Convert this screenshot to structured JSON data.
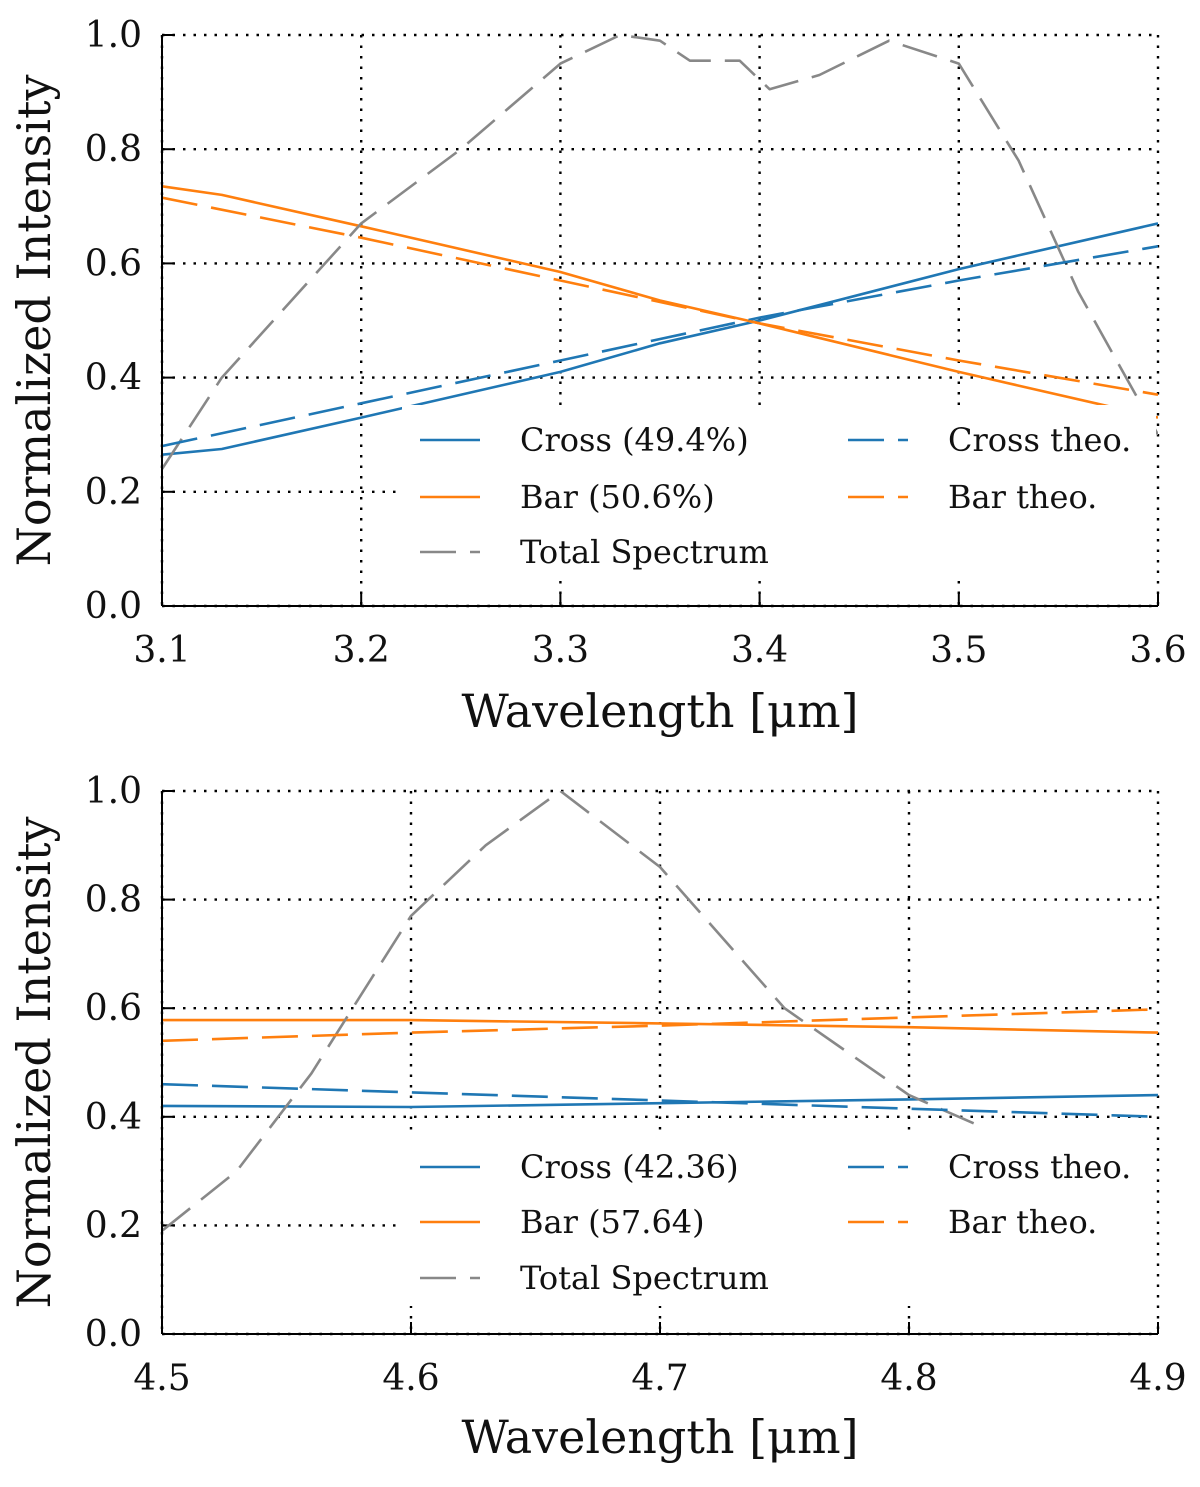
{
  "chart_data": [
    {
      "type": "line",
      "xlabel": "Wavelength [μm]",
      "ylabel": "Normalized Intensity",
      "xlim": [
        3.1,
        3.6
      ],
      "ylim": [
        0.0,
        1.0
      ],
      "xticks": [
        3.1,
        3.2,
        3.3,
        3.4,
        3.5,
        3.6
      ],
      "xtick_labels": [
        "3.1",
        "3.2",
        "3.3",
        "3.4",
        "3.5",
        "3.6"
      ],
      "yticks": [
        0.0,
        0.2,
        0.4,
        0.6,
        0.8,
        1.0
      ],
      "ytick_labels": [
        "0.0",
        "0.2",
        "0.4",
        "0.6",
        "0.8",
        "1.0"
      ],
      "grid": true,
      "legend_placement": "lower-right",
      "series": [
        {
          "name": "Cross (49.4%)",
          "color": "#1f77b4",
          "style": "solid",
          "x": [
            3.1,
            3.13,
            3.2,
            3.3,
            3.35,
            3.4,
            3.5,
            3.6
          ],
          "y": [
            0.265,
            0.275,
            0.33,
            0.41,
            0.46,
            0.5,
            0.59,
            0.67
          ]
        },
        {
          "name": "Bar (50.6%)",
          "color": "#ff7f0e",
          "style": "solid",
          "x": [
            3.1,
            3.13,
            3.2,
            3.3,
            3.35,
            3.4,
            3.5,
            3.6
          ],
          "y": [
            0.735,
            0.72,
            0.665,
            0.585,
            0.535,
            0.495,
            0.41,
            0.33
          ]
        },
        {
          "name": "Total Spectrum",
          "color": "#888888",
          "style": "dashed",
          "x": [
            3.1,
            3.13,
            3.2,
            3.25,
            3.3,
            3.33,
            3.35,
            3.365,
            3.39,
            3.405,
            3.43,
            3.465,
            3.5,
            3.53,
            3.56,
            3.6
          ],
          "y": [
            0.24,
            0.4,
            0.67,
            0.8,
            0.95,
            1.0,
            0.99,
            0.955,
            0.955,
            0.905,
            0.93,
            0.99,
            0.95,
            0.78,
            0.55,
            0.3
          ]
        },
        {
          "name": "Cross theo.",
          "color": "#1f77b4",
          "style": "dashed",
          "x": [
            3.1,
            3.2,
            3.3,
            3.4,
            3.5,
            3.6
          ],
          "y": [
            0.28,
            0.355,
            0.43,
            0.505,
            0.57,
            0.63
          ]
        },
        {
          "name": "Bar theo.",
          "color": "#ff7f0e",
          "style": "dashed",
          "x": [
            3.1,
            3.2,
            3.3,
            3.4,
            3.5,
            3.6
          ],
          "y": [
            0.715,
            0.645,
            0.57,
            0.495,
            0.43,
            0.37
          ]
        }
      ],
      "legend_order": [
        "Cross (49.4%)",
        "Bar (50.6%)",
        "Total Spectrum",
        "Cross theo.",
        "Bar theo."
      ]
    },
    {
      "type": "line",
      "xlabel": "Wavelength [μm]",
      "ylabel": "Normalized Intensity",
      "xlim": [
        4.5,
        4.9
      ],
      "ylim": [
        0.0,
        1.0
      ],
      "xticks": [
        4.5,
        4.6,
        4.7,
        4.8,
        4.9
      ],
      "xtick_labels": [
        "4.5",
        "4.6",
        "4.7",
        "4.8",
        "4.9"
      ],
      "yticks": [
        0.0,
        0.2,
        0.4,
        0.6,
        0.8,
        1.0
      ],
      "ytick_labels": [
        "0.0",
        "0.2",
        "0.4",
        "0.6",
        "0.8",
        "1.0"
      ],
      "grid": true,
      "legend_placement": "lower-right",
      "series": [
        {
          "name": "Cross (42.36)",
          "color": "#1f77b4",
          "style": "solid",
          "x": [
            4.5,
            4.6,
            4.7,
            4.8,
            4.9
          ],
          "y": [
            0.42,
            0.418,
            0.425,
            0.432,
            0.44
          ]
        },
        {
          "name": "Bar (57.64)",
          "color": "#ff7f0e",
          "style": "solid",
          "x": [
            4.5,
            4.6,
            4.7,
            4.8,
            4.9
          ],
          "y": [
            0.578,
            0.578,
            0.572,
            0.565,
            0.555
          ]
        },
        {
          "name": "Total Spectrum",
          "color": "#888888",
          "style": "dashed",
          "x": [
            4.5,
            4.53,
            4.56,
            4.6,
            4.63,
            4.66,
            4.7,
            4.75,
            4.8,
            4.83
          ],
          "y": [
            0.19,
            0.3,
            0.48,
            0.77,
            0.9,
            1.0,
            0.86,
            0.6,
            0.44,
            0.38
          ]
        },
        {
          "name": "Cross theo.",
          "color": "#1f77b4",
          "style": "dashed",
          "x": [
            4.5,
            4.6,
            4.7,
            4.8,
            4.9
          ],
          "y": [
            0.46,
            0.445,
            0.43,
            0.415,
            0.4
          ]
        },
        {
          "name": "Bar theo.",
          "color": "#ff7f0e",
          "style": "dashed",
          "x": [
            4.5,
            4.6,
            4.7,
            4.8,
            4.9
          ],
          "y": [
            0.54,
            0.555,
            0.568,
            0.583,
            0.598
          ]
        }
      ],
      "legend_order": [
        "Cross (42.36)",
        "Bar (57.64)",
        "Total Spectrum",
        "Cross theo.",
        "Bar theo."
      ]
    }
  ]
}
